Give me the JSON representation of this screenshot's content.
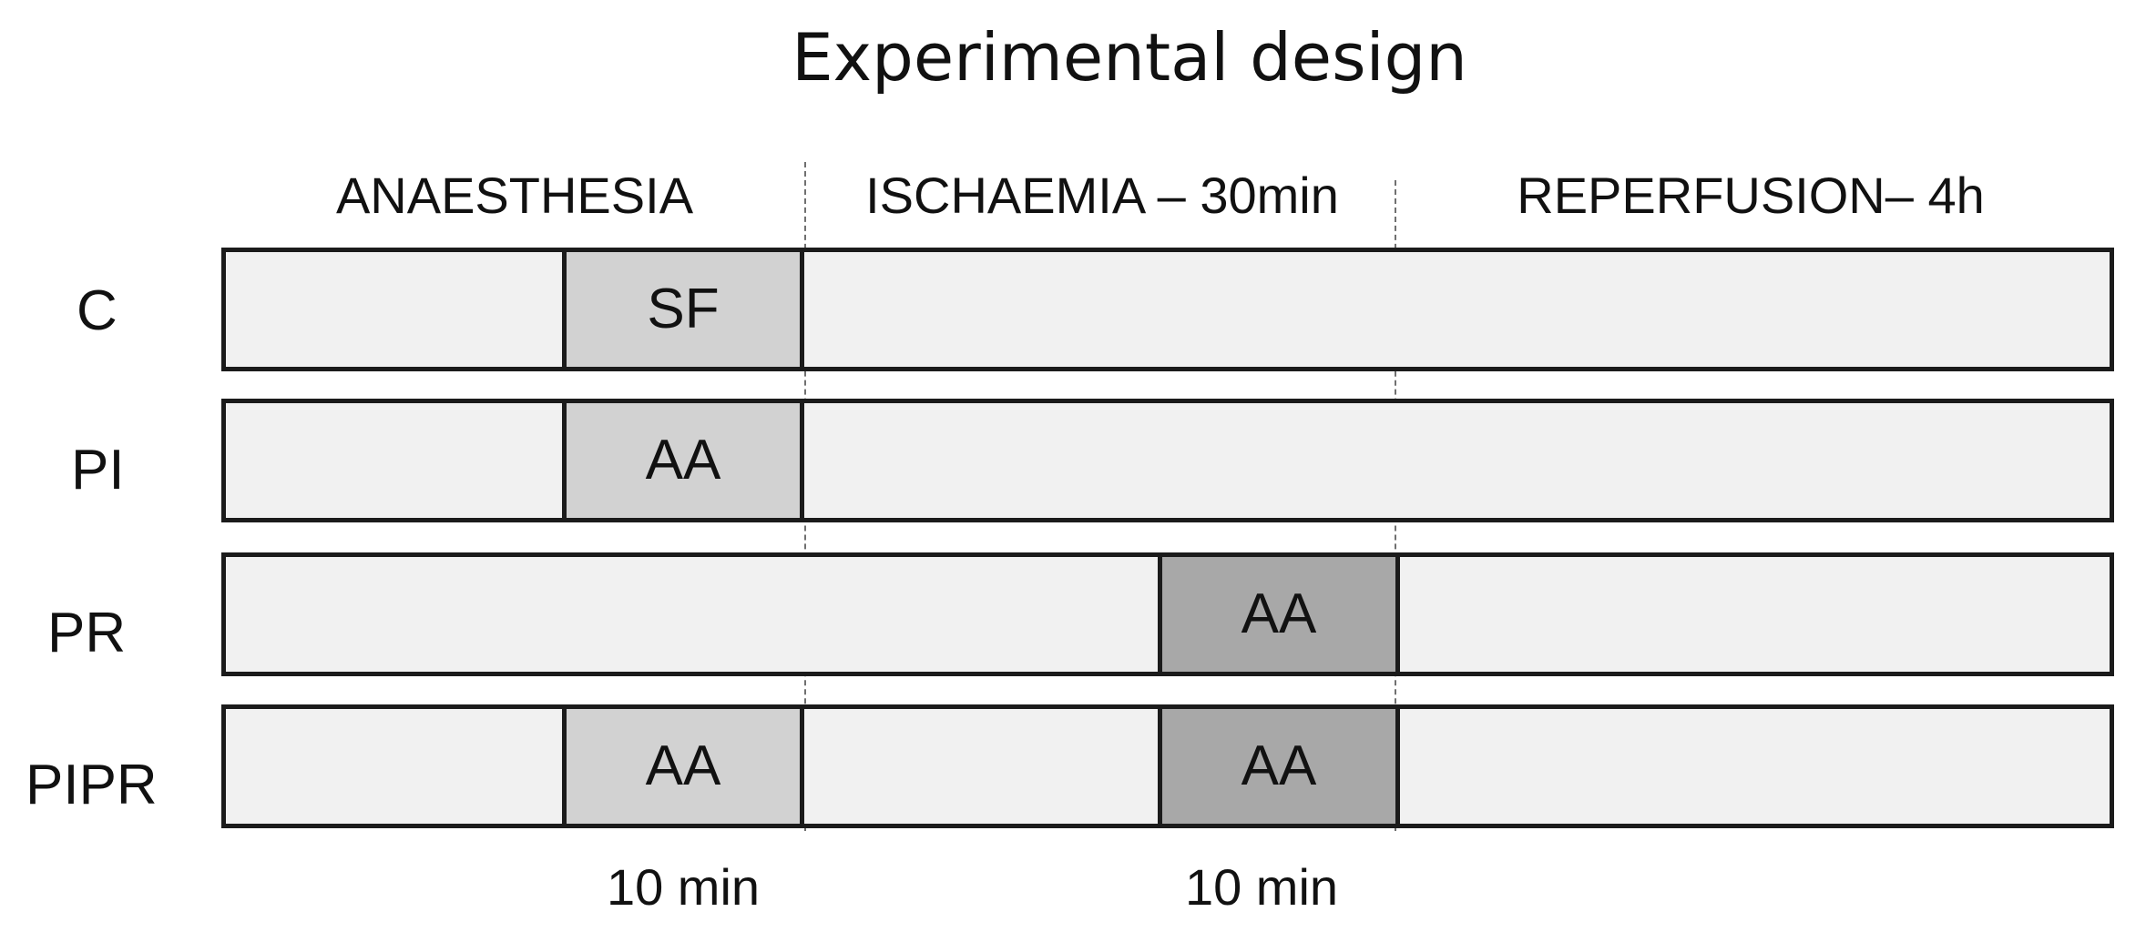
{
  "title": "Experimental design",
  "phases": [
    {
      "label": "ANAESTHESIA"
    },
    {
      "label": "ISCHAEMIA – 30min"
    },
    {
      "label": "REPERFUSION– 4h"
    }
  ],
  "groups": [
    {
      "label": "C",
      "pre_treatment": "SF",
      "post_treatment": ""
    },
    {
      "label": "PI",
      "pre_treatment": "AA",
      "post_treatment": ""
    },
    {
      "label": "PR",
      "pre_treatment": "",
      "post_treatment": "AA"
    },
    {
      "label": "PIPR",
      "pre_treatment": "AA",
      "post_treatment": "AA"
    }
  ],
  "durations": [
    {
      "label": "10 min"
    },
    {
      "label": "10 min"
    }
  ],
  "colors": {
    "bar_fill": "#f1f1f1",
    "pre_treatment_fill": "#d2d2d2",
    "post_treatment_fill": "#a8a8a8",
    "outline": "#1b1b1b",
    "phase_divider": "#707070"
  }
}
